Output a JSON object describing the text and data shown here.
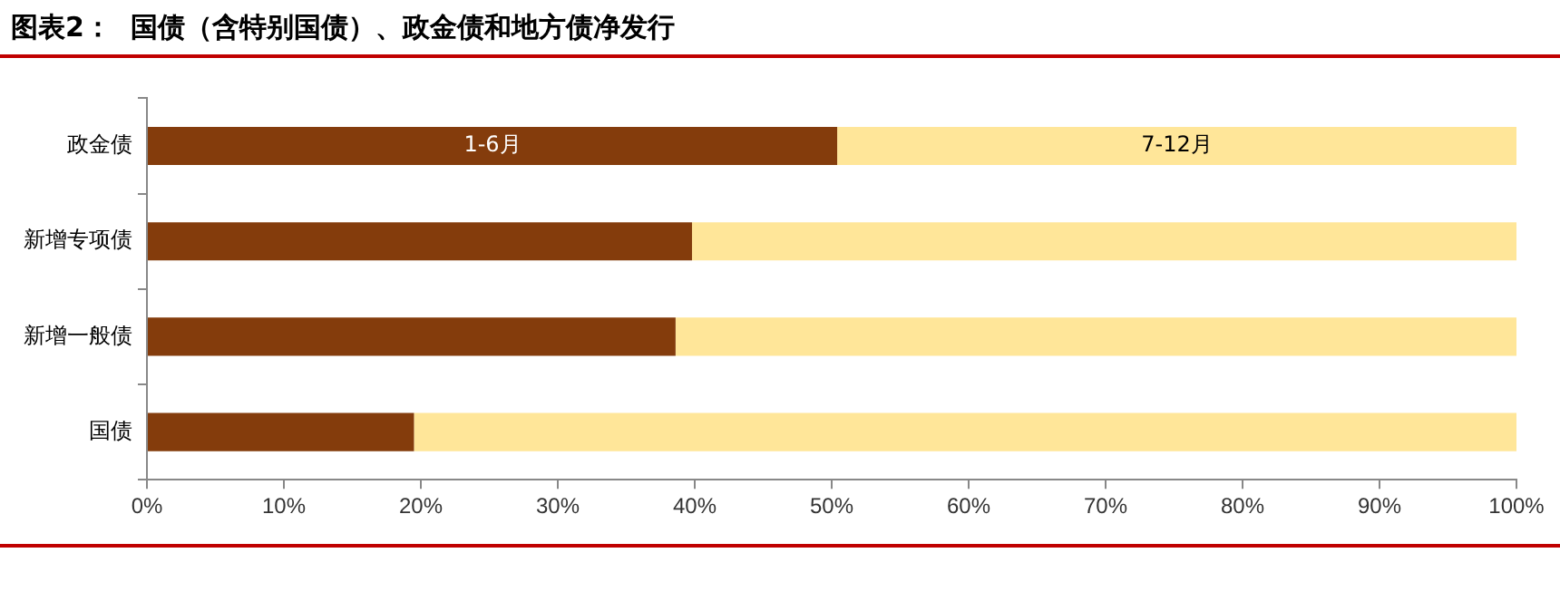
{
  "chart_data": {
    "type": "bar",
    "title": "图表2：  国债（含特别国债）、政金债和地方债净发行",
    "orientation": "horizontal",
    "stacked": true,
    "categories": [
      "政金债",
      "新增专项债",
      "新增一般债",
      "国债"
    ],
    "series": [
      {
        "name": "1-6月",
        "color": "#843c0c",
        "values": [
          50.4,
          39.8,
          38.6,
          19.5
        ]
      },
      {
        "name": "7-12月",
        "color": "#ffe699",
        "values": [
          49.6,
          60.2,
          61.4,
          80.5
        ]
      }
    ],
    "xlim": [
      0,
      100
    ],
    "xticks": [
      {
        "value": 0,
        "label": "0%"
      },
      {
        "value": 10,
        "label": "10%"
      },
      {
        "value": 20,
        "label": "20%"
      },
      {
        "value": 30,
        "label": "30%"
      },
      {
        "value": 40,
        "label": "40%"
      },
      {
        "value": 50,
        "label": "50%"
      },
      {
        "value": 60,
        "label": "60%"
      },
      {
        "value": 70,
        "label": "70%"
      },
      {
        "value": 80,
        "label": "80%"
      },
      {
        "value": 90,
        "label": "90%"
      },
      {
        "value": 100,
        "label": "100%"
      }
    ],
    "grid": false,
    "legend": false
  }
}
